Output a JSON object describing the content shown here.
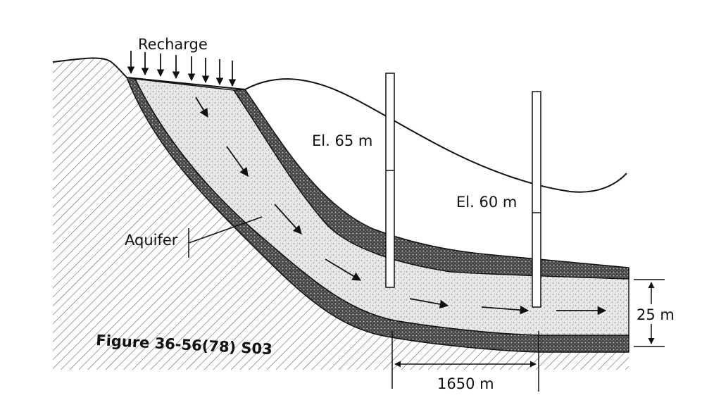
{
  "labels": {
    "recharge": "Recharge",
    "aquifer": "Aquifer",
    "well1_elevation": "El. 65 m",
    "well2_elevation": "El. 60 m",
    "thickness": "25 m",
    "distance": "1650 m",
    "figure_caption": "Figure 36-56(78) S03"
  }
}
